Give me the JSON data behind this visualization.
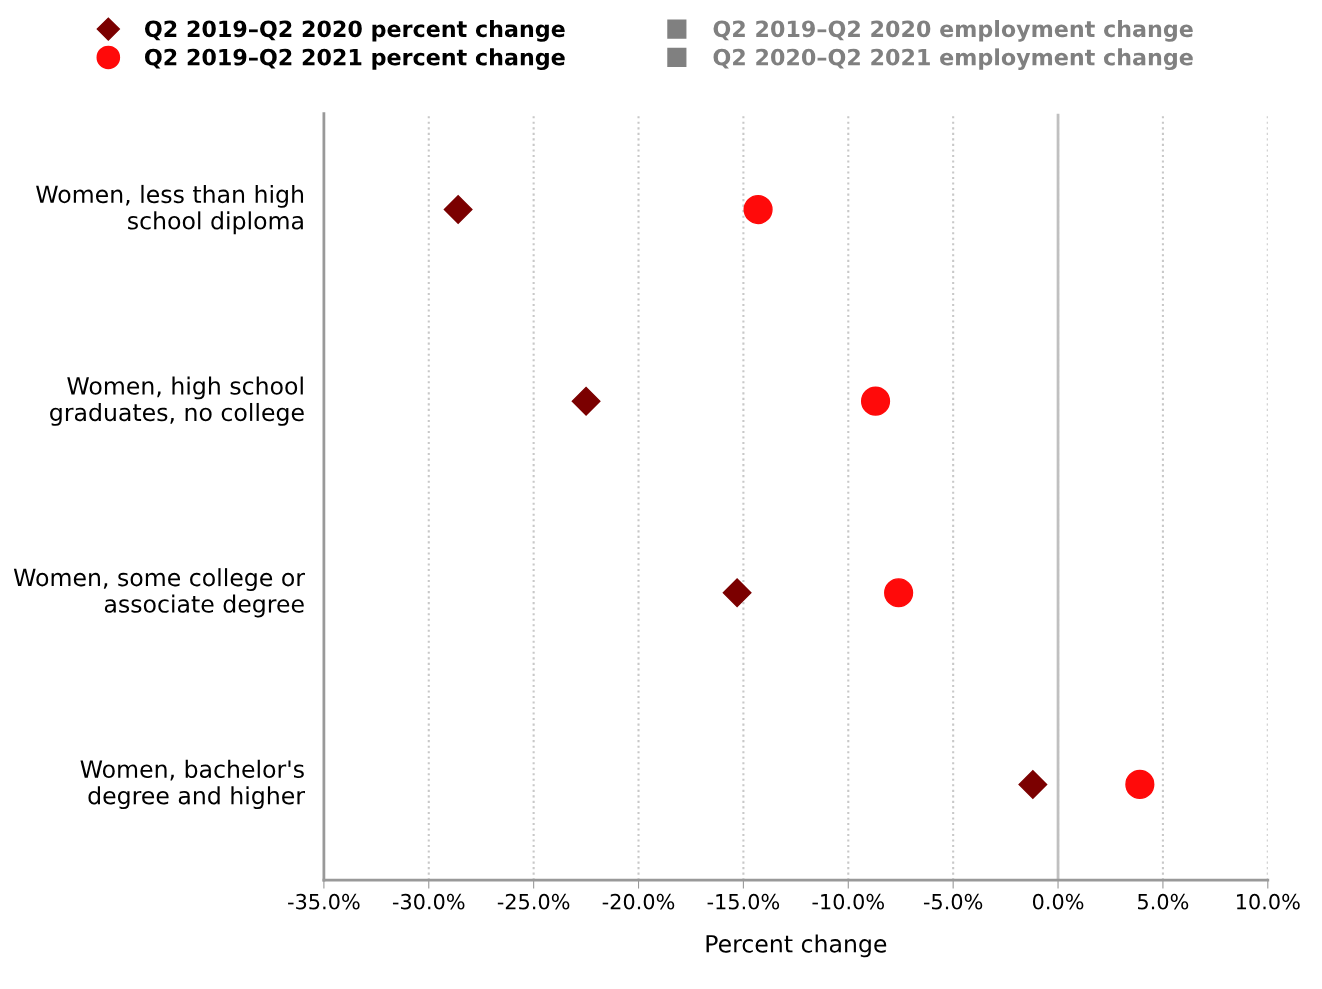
{
  "chart_data": {
    "type": "scatter",
    "orientation": "horizontal",
    "xlabel": "Percent change",
    "categories": [
      "Women, less than high school diploma",
      "Women, high school graduates, no college",
      "Women, some college or associate degree",
      "Women, bachelor's degree and higher"
    ],
    "series": [
      {
        "name": "Q2 2019–Q2 2020 percent change",
        "color": "#7b0000",
        "marker": "diamond",
        "values": [
          -28.6,
          -22.5,
          -15.3,
          -1.2
        ]
      },
      {
        "name": "Q2 2019–Q2 2020 employment change",
        "color": "#808080",
        "marker": "square",
        "values": [
          null,
          null,
          null,
          null
        ]
      },
      {
        "name": "Q2 2019–Q2 2021 percent change",
        "color": "#ff0a0a",
        "marker": "circle",
        "values": [
          -14.3,
          -8.7,
          -7.6,
          3.9
        ]
      },
      {
        "name": "Q2 2020–Q2 2021 employment change",
        "color": "#808080",
        "marker": "square",
        "values": [
          null,
          null,
          null,
          null
        ]
      }
    ],
    "xlim": [
      -35,
      10
    ],
    "xticks": [
      {
        "value": -35,
        "label": "-35.0%"
      },
      {
        "value": -30,
        "label": "-30.0%"
      },
      {
        "value": -25,
        "label": "-25.0%"
      },
      {
        "value": -20,
        "label": "-20.0%"
      },
      {
        "value": -15,
        "label": "-15.0%"
      },
      {
        "value": -10,
        "label": "-10.0%"
      },
      {
        "value": -5,
        "label": "-5.0%"
      },
      {
        "value": 0,
        "label": "0.0%"
      },
      {
        "value": 5,
        "label": "5.0%"
      },
      {
        "value": 10,
        "label": "10.0%"
      }
    ],
    "ref_lines": [
      {
        "axis": "x",
        "value": 0,
        "color": "#c0c0c0",
        "line_style": "solid"
      }
    ],
    "grid": "x",
    "legend": "top"
  }
}
